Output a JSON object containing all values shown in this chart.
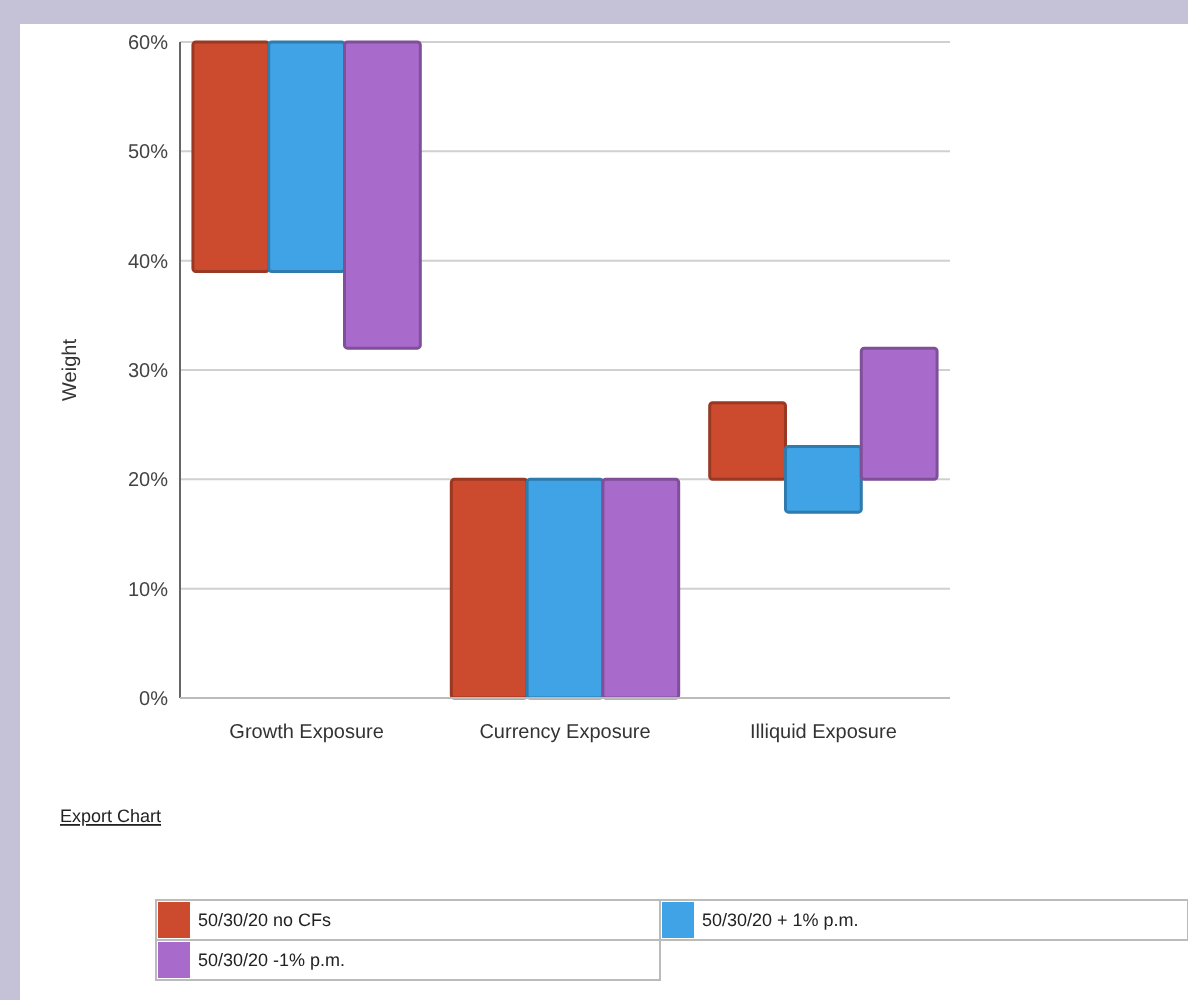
{
  "chart_data": {
    "type": "bar",
    "ylabel": "Weight",
    "categories": [
      "Growth Exposure",
      "Currency Exposure",
      "Illiquid Exposure"
    ],
    "series": [
      {
        "name": "50/30/20 no CFs",
        "color": "#cc4a2e",
        "base": [
          39,
          0,
          20
        ],
        "values": [
          21,
          20,
          7
        ]
      },
      {
        "name": "50/30/20 + 1% p.m.",
        "color": "#3fa3e6",
        "base": [
          39,
          0,
          17
        ],
        "values": [
          21,
          20,
          6
        ]
      },
      {
        "name": "50/30/20 -1% p.m.",
        "color": "#a96bcb",
        "base": [
          32,
          0,
          20
        ],
        "values": [
          28,
          20,
          12
        ]
      }
    ],
    "ylim": [
      0,
      60
    ],
    "yticks": [
      {
        "value": 0,
        "label": "0%"
      },
      {
        "value": 10,
        "label": "10%"
      },
      {
        "value": 20,
        "label": "20%"
      },
      {
        "value": 30,
        "label": "30%"
      },
      {
        "value": 40,
        "label": "40%"
      },
      {
        "value": 50,
        "label": "50%"
      },
      {
        "value": 60,
        "label": "60%"
      }
    ],
    "grid": "y",
    "legend": "bottom",
    "annotations": [
      "Export Chart"
    ]
  }
}
